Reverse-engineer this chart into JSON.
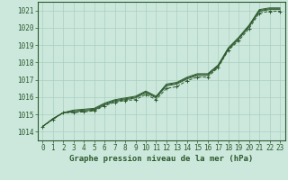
{
  "xlabel": "Graphe pression niveau de la mer (hPa)",
  "bg_color": "#cce8dd",
  "grid_color": "#aacfbe",
  "line_color": "#2d5a2d",
  "x_values": [
    0,
    1,
    2,
    3,
    4,
    5,
    6,
    7,
    8,
    9,
    10,
    11,
    12,
    13,
    14,
    15,
    16,
    17,
    18,
    19,
    20,
    21,
    22,
    23
  ],
  "series1": [
    1014.3,
    1014.75,
    1015.1,
    1015.15,
    1015.2,
    1015.25,
    1015.55,
    1015.75,
    1015.85,
    1015.95,
    1016.25,
    1015.95,
    1016.65,
    1016.75,
    1017.05,
    1017.25,
    1017.25,
    1017.75,
    1018.75,
    1019.35,
    1020.05,
    1020.95,
    1021.05,
    1021.05
  ],
  "series2": [
    1014.3,
    1014.75,
    1015.1,
    1015.2,
    1015.25,
    1015.3,
    1015.6,
    1015.8,
    1015.9,
    1016.0,
    1016.3,
    1016.0,
    1016.7,
    1016.8,
    1017.1,
    1017.3,
    1017.3,
    1017.8,
    1018.8,
    1019.4,
    1020.1,
    1021.0,
    1021.1,
    1021.1
  ],
  "series3": [
    1014.3,
    1014.75,
    1015.1,
    1015.25,
    1015.3,
    1015.35,
    1015.65,
    1015.85,
    1015.95,
    1016.05,
    1016.35,
    1016.05,
    1016.75,
    1016.85,
    1017.15,
    1017.35,
    1017.35,
    1017.85,
    1018.85,
    1019.45,
    1020.15,
    1021.05,
    1021.15,
    1021.15
  ],
  "series_dot": [
    1014.3,
    1014.7,
    1015.1,
    1015.1,
    1015.15,
    1015.2,
    1015.5,
    1015.7,
    1015.8,
    1015.85,
    1016.15,
    1015.85,
    1016.5,
    1016.6,
    1016.95,
    1017.15,
    1017.15,
    1017.7,
    1018.7,
    1019.25,
    1019.95,
    1020.85,
    1020.95,
    1020.95
  ],
  "ylim": [
    1013.5,
    1021.5
  ],
  "yticks": [
    1014,
    1015,
    1016,
    1017,
    1018,
    1019,
    1020,
    1021
  ],
  "xticks": [
    0,
    1,
    2,
    3,
    4,
    5,
    6,
    7,
    8,
    9,
    10,
    11,
    12,
    13,
    14,
    15,
    16,
    17,
    18,
    19,
    20,
    21,
    22,
    23
  ],
  "tick_fontsize": 5.5,
  "label_fontsize": 6.5
}
